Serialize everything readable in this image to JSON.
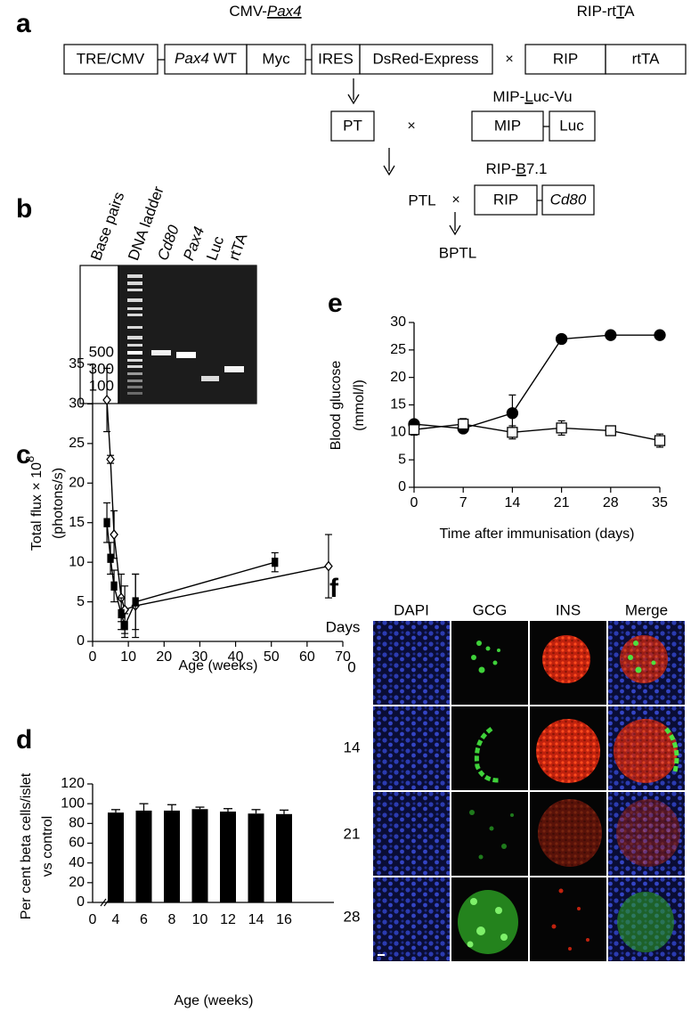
{
  "panel_labels": {
    "a": "a",
    "b": "b",
    "c": "c",
    "d": "d",
    "e": "e",
    "f": "f"
  },
  "diagram": {
    "constructs": {
      "cmv_pax4": [
        "CMV-",
        "Pax4"
      ],
      "rip_rtta": [
        "RIP-rt",
        "T",
        "A"
      ],
      "mip_luc": [
        "MIP-",
        "L",
        "uc-Vu"
      ],
      "rip_b71": [
        "RIP-",
        "B",
        "7.1"
      ]
    },
    "boxes": {
      "tre_cmv": "TRE/CMV",
      "pax4_wt": [
        "Pax4",
        " WT"
      ],
      "myc": "Myc",
      "ires": "IRES",
      "dsred": "DsRed-Express",
      "rip_1": "RIP",
      "rtta": "rtTA",
      "pt": "PT",
      "mip": "MIP",
      "luc": "Luc",
      "rip_2": "RIP",
      "cd80": "Cd80"
    },
    "crosses": [
      "×",
      "×",
      "×"
    ],
    "ptl": "PTL",
    "bptl": "BPTL"
  },
  "gel": {
    "lanes": [
      "Base pairs",
      "DNA ladder",
      "Cd80",
      "Pax4",
      "Luc",
      "rtTA"
    ],
    "sizes": [
      "500",
      "300",
      "100"
    ]
  },
  "chart_data": [
    {
      "type": "line",
      "xlabel": "Age (weeks)",
      "ylabel": [
        "Total flux × 10",
        "8",
        "(photons/s)"
      ],
      "xlim": [
        0,
        70
      ],
      "xticks": [
        0,
        10,
        20,
        30,
        40,
        50,
        60,
        70
      ],
      "ylim": [
        0,
        35
      ],
      "yticks": [
        0,
        5,
        10,
        15,
        20,
        25,
        30,
        35
      ],
      "series": [
        {
          "marker": "diamond",
          "filled": false,
          "color": "#000000",
          "x": [
            4,
            5,
            6,
            8,
            9,
            12,
            66
          ],
          "values": [
            30.5,
            23,
            13.5,
            5.5,
            4,
            4.5,
            9.5
          ],
          "errors": [
            4,
            0.5,
            3,
            3,
            3,
            4,
            4
          ]
        },
        {
          "marker": "square",
          "filled": true,
          "color": "#000000",
          "x": [
            4,
            5,
            6,
            8,
            9,
            12,
            51
          ],
          "values": [
            15,
            10.5,
            7,
            3.5,
            2,
            5,
            10
          ],
          "errors": [
            2.5,
            2,
            2,
            2,
            1.5,
            3.5,
            1.2
          ]
        }
      ]
    },
    {
      "type": "bar",
      "xlabel": "Age (weeks)",
      "ylabel": [
        "Per cent beta cells/islet",
        "vs control"
      ],
      "categories": [
        "0",
        "4",
        "6",
        "8",
        "10",
        "12",
        "14",
        "16"
      ],
      "values": [
        null,
        91,
        93,
        93,
        94.5,
        92,
        90,
        89.5
      ],
      "errors": [
        null,
        3,
        7,
        6,
        2,
        3,
        4,
        4
      ],
      "color": "#000000",
      "ylim": [
        0,
        120
      ],
      "yticks": [
        0,
        20,
        40,
        60,
        80,
        100,
        120
      ]
    },
    {
      "type": "line",
      "xlabel": "Time after immunisation (days)",
      "ylabel": [
        "Blood glucose",
        "(mmol/l)"
      ],
      "x": [
        0,
        7,
        14,
        21,
        28,
        35
      ],
      "xlim": [
        0,
        35
      ],
      "xticks": [
        0,
        7,
        14,
        21,
        28,
        35
      ],
      "ylim": [
        0,
        30
      ],
      "yticks": [
        0,
        5,
        10,
        15,
        20,
        25,
        30
      ],
      "series": [
        {
          "marker": "circle",
          "filled": true,
          "color": "#000000",
          "values": [
            11.5,
            10.7,
            13.5,
            27,
            27.7,
            27.7
          ],
          "errors": [
            0.4,
            0.6,
            3.3,
            0.5,
            0.4,
            0.4
          ]
        },
        {
          "marker": "square",
          "filled": false,
          "color": "#000000",
          "values": [
            10.5,
            11.5,
            10,
            10.8,
            10.3,
            8.5
          ],
          "errors": [
            1,
            1,
            1.2,
            1.3,
            0.5,
            1.2
          ]
        }
      ]
    }
  ],
  "micrographs": {
    "columns": [
      "DAPI",
      "GCG",
      "INS",
      "Merge"
    ],
    "row_title": "Days",
    "rows": [
      "0",
      "14",
      "21",
      "28"
    ]
  }
}
